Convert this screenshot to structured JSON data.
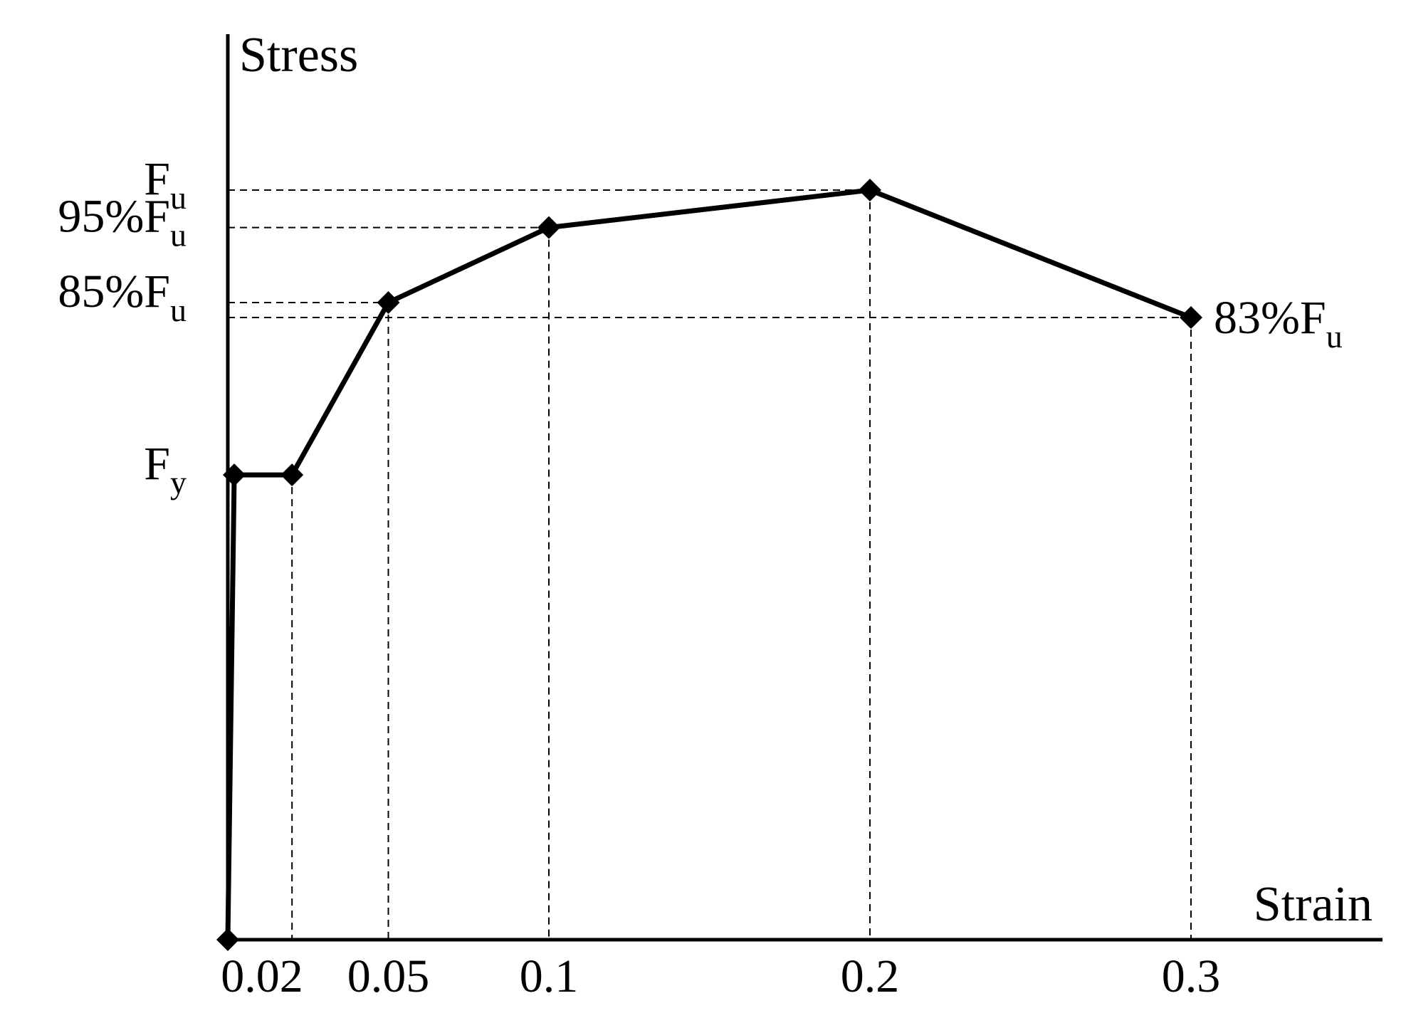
{
  "chart_data": {
    "type": "line",
    "title": "",
    "xlabel": "Strain",
    "ylabel": "Stress",
    "grid": false,
    "x_ticks": [
      {
        "value": 0.02,
        "label": "0.02"
      },
      {
        "value": 0.05,
        "label": "0.05"
      },
      {
        "value": 0.1,
        "label": "0.1"
      },
      {
        "value": 0.2,
        "label": "0.2"
      },
      {
        "value": 0.3,
        "label": "0.3"
      }
    ],
    "y_ticks": [
      {
        "value": 1.0,
        "main": "F",
        "sub": "u"
      },
      {
        "value": 0.95,
        "main": "95%F",
        "sub": "u"
      },
      {
        "value": 0.85,
        "main": "85%F",
        "sub": "u"
      },
      {
        "value": 0.62,
        "main": "F",
        "sub": "y"
      }
    ],
    "series": [
      {
        "points": [
          {
            "x": 0.0,
            "y": 0.0
          },
          {
            "x": 0.002,
            "y": 0.62
          },
          {
            "x": 0.02,
            "y": 0.62
          },
          {
            "x": 0.05,
            "y": 0.85
          },
          {
            "x": 0.1,
            "y": 0.95
          },
          {
            "x": 0.2,
            "y": 1.0
          },
          {
            "x": 0.3,
            "y": 0.83
          }
        ]
      }
    ],
    "annotations": [
      {
        "x": 0.3,
        "y": 0.83,
        "main": "83%F",
        "sub": "u"
      }
    ],
    "guides": [
      {
        "x": 0.02,
        "y": 0.62
      },
      {
        "x": 0.05,
        "y": 0.85
      },
      {
        "x": 0.1,
        "y": 0.95
      },
      {
        "x": 0.2,
        "y": 1.0
      },
      {
        "x": 0.3,
        "y": 0.83
      }
    ],
    "xlim": [
      0,
      0.36
    ],
    "ylim": [
      0,
      1.25
    ]
  }
}
